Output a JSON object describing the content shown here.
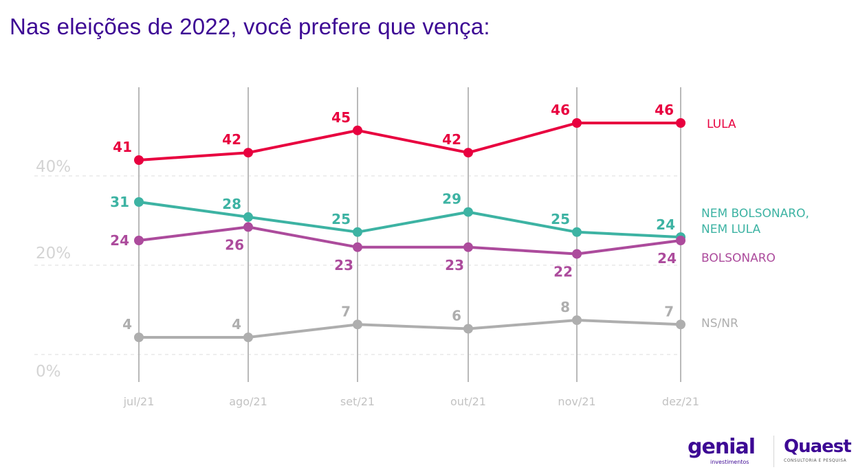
{
  "title": "Nas eleições de 2022, você prefere que vença:",
  "chart_data": {
    "type": "line",
    "title": "Nas eleições de 2022, você prefere que vença:",
    "xlabel": "",
    "ylabel": "",
    "categories": [
      "jul/21",
      "ago/21",
      "set/21",
      "out/21",
      "nov/21",
      "dez/21"
    ],
    "yticks": [
      "40%",
      "20%",
      "0%"
    ],
    "ylim": [
      0,
      50
    ],
    "grid": true,
    "legend": "right",
    "series": [
      {
        "name": "LULA",
        "color": "#e8003f",
        "values": [
          41,
          42,
          45,
          42,
          46,
          46
        ]
      },
      {
        "name": "NEM BOLSONARO, NEM LULA",
        "name_lines": [
          "NEM BOLSONARO,",
          "NEM LULA"
        ],
        "color": "#3db3a3",
        "values": [
          31,
          28,
          25,
          29,
          25,
          24
        ]
      },
      {
        "name": "BOLSONARO",
        "color": "#ac4b9c",
        "values": [
          24,
          26,
          23,
          23,
          22,
          24
        ]
      },
      {
        "name": "NS/NR",
        "color": "#aeaeae",
        "values": [
          4,
          4,
          7,
          6,
          8,
          7
        ]
      }
    ]
  },
  "logos": {
    "genial": "genial",
    "genial_sub": "investimentos",
    "quaest": "Quaest",
    "quaest_sub": "CONSULTORIA E PESQUISA"
  }
}
